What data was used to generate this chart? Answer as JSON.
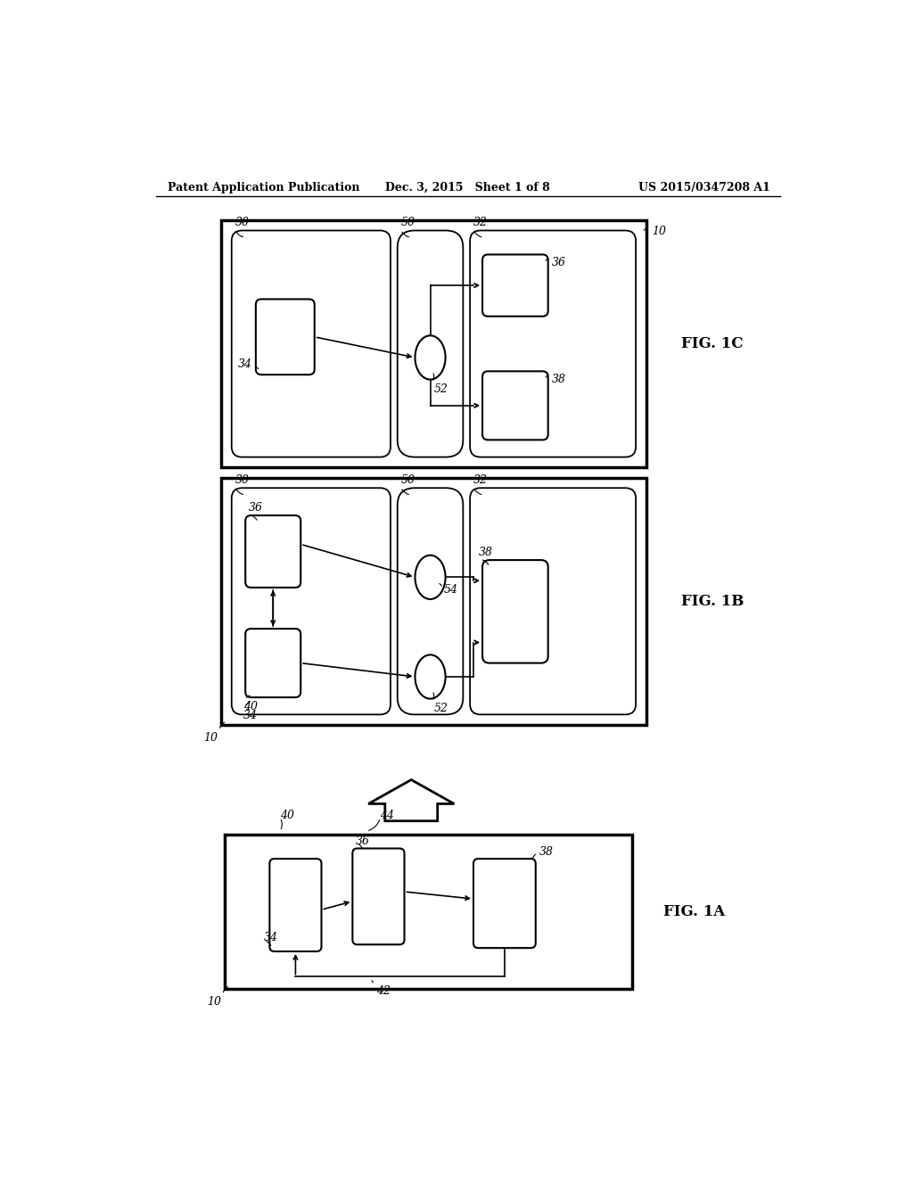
{
  "bg_color": "#ffffff",
  "line_color": "#000000",
  "header_left": "Patent Application Publication",
  "header_mid": "Dec. 3, 2015   Sheet 1 of 8",
  "header_right": "US 2015/0347208 A1"
}
